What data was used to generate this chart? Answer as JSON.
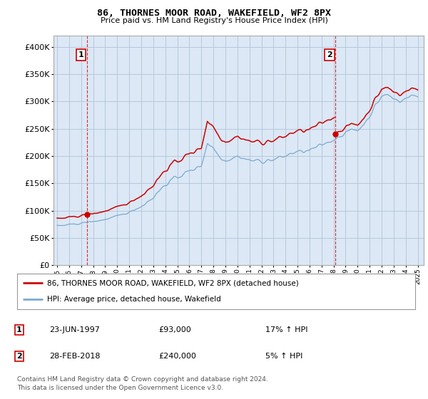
{
  "title": "86, THORNES MOOR ROAD, WAKEFIELD, WF2 8PX",
  "subtitle": "Price paid vs. HM Land Registry's House Price Index (HPI)",
  "legend_line1": "86, THORNES MOOR ROAD, WAKEFIELD, WF2 8PX (detached house)",
  "legend_line2": "HPI: Average price, detached house, Wakefield",
  "sale1_date": "23-JUN-1997",
  "sale1_price": "£93,000",
  "sale1_hpi": "17% ↑ HPI",
  "sale2_date": "28-FEB-2018",
  "sale2_price": "£240,000",
  "sale2_hpi": "5% ↑ HPI",
  "footer": "Contains HM Land Registry data © Crown copyright and database right 2024.\nThis data is licensed under the Open Government Licence v3.0.",
  "sale_color": "#cc0000",
  "hpi_color": "#7aaad0",
  "background_color": "#ffffff",
  "chart_bg_color": "#dce8f5",
  "grid_color": "#b0c4d8",
  "sale_point_x": [
    1997.48,
    2018.16
  ],
  "sale_point_y": [
    93000,
    240000
  ],
  "ylim": [
    0,
    420000
  ],
  "yticks": [
    0,
    50000,
    100000,
    150000,
    200000,
    250000,
    300000,
    350000,
    400000
  ],
  "xlim_start": 1994.7,
  "xlim_end": 2025.5
}
